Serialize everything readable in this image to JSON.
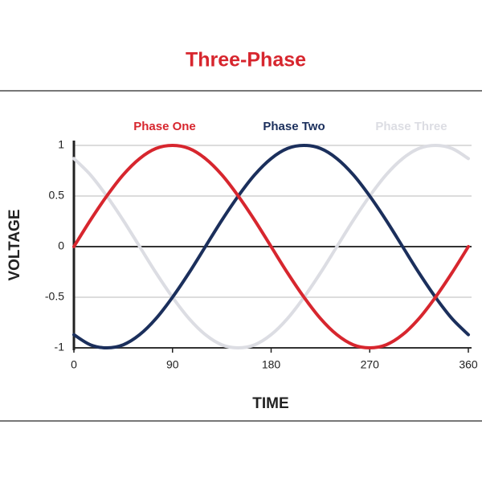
{
  "chart_data": {
    "type": "line",
    "title": "Three-Phase",
    "x_label": "TIME",
    "y_label": "VOLTAGE",
    "x": [
      0,
      15,
      30,
      45,
      60,
      75,
      90,
      105,
      120,
      135,
      150,
      165,
      180,
      195,
      210,
      225,
      240,
      255,
      270,
      285,
      300,
      315,
      330,
      345,
      360
    ],
    "series": [
      {
        "name": "Phase One",
        "color": "#d7262e",
        "values": [
          0,
          0.26,
          0.5,
          0.71,
          0.87,
          0.97,
          1,
          0.97,
          0.87,
          0.71,
          0.5,
          0.26,
          0,
          -0.26,
          -0.5,
          -0.71,
          -0.87,
          -0.97,
          -1,
          -0.97,
          -0.87,
          -0.71,
          -0.5,
          -0.26,
          0
        ]
      },
      {
        "name": "Phase Two",
        "color": "#1b2f5c",
        "values": [
          -0.87,
          -0.97,
          -1,
          -0.97,
          -0.87,
          -0.71,
          -0.5,
          -0.26,
          0,
          0.26,
          0.5,
          0.71,
          0.87,
          0.97,
          1,
          0.97,
          0.87,
          0.71,
          0.5,
          0.26,
          0,
          -0.26,
          -0.5,
          -0.71,
          -0.87
        ]
      },
      {
        "name": "Phase Three",
        "color": "#dcdde3",
        "values": [
          0.87,
          0.71,
          0.5,
          0.26,
          0,
          -0.26,
          -0.5,
          -0.71,
          -0.87,
          -0.97,
          -1,
          -0.97,
          -0.87,
          -0.71,
          -0.5,
          -0.26,
          0,
          0.26,
          0.5,
          0.71,
          0.87,
          0.97,
          1,
          0.97,
          0.87
        ]
      }
    ],
    "xlim": [
      0,
      360
    ],
    "xticks": [
      0,
      90,
      180,
      270,
      360
    ],
    "ylim": [
      -1,
      1
    ],
    "yticks": [
      1,
      0.5,
      0,
      -0.5,
      -1
    ],
    "grid": true
  }
}
